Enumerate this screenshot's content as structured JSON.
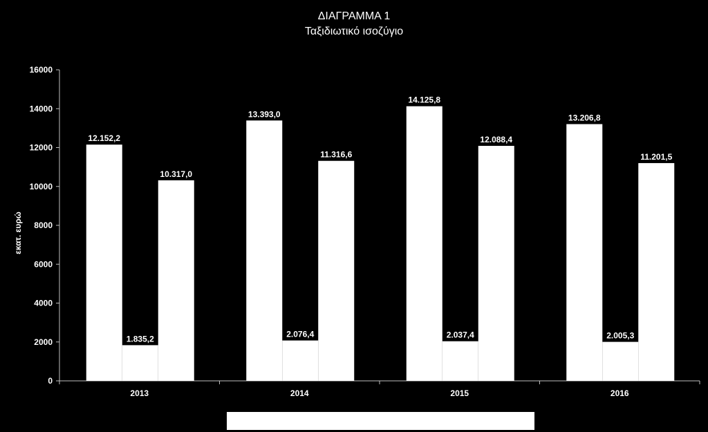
{
  "chart_data": {
    "type": "bar",
    "title": "ΔΙΑΓΡΑΜΜΑ 1",
    "subtitle": "Ταξιδιωτικό ισοζύγιο",
    "xlabel": "",
    "ylabel": "εκατ. ευρώ",
    "ylim": [
      0,
      16000
    ],
    "yticks": [
      "0",
      "2000",
      "4000",
      "6000",
      "8000",
      "10000",
      "12000",
      "14000",
      "16000"
    ],
    "ytick_values": [
      0,
      2000,
      4000,
      6000,
      8000,
      10000,
      12000,
      14000,
      16000
    ],
    "categories": [
      "2013",
      "2014",
      "2015",
      "2016"
    ],
    "series": [
      {
        "values": [
          12152.2,
          13393.0,
          14125.8,
          13206.8
        ],
        "labels": [
          "12.152,2",
          "13.393,0",
          "14.125,8",
          "13.206,8"
        ],
        "color": "#ffffff"
      },
      {
        "values": [
          1835.2,
          2076.4,
          2037.4,
          2005.3
        ],
        "labels": [
          "1.835,2",
          "2.076,4",
          "2.037,4",
          "2.005,3"
        ],
        "color": "#ffffff"
      },
      {
        "values": [
          10317.0,
          11316.6,
          12088.4,
          11201.5
        ],
        "labels": [
          "10.317,0",
          "11.316,6",
          "12.088,4",
          "11.201,5"
        ],
        "color": "#ffffff"
      }
    ],
    "grid": false,
    "legend": "bottom",
    "colors": {
      "background": "#000000",
      "bars": "#ffffff",
      "text": "#ffffff",
      "axis": "#bfbfbf"
    }
  }
}
